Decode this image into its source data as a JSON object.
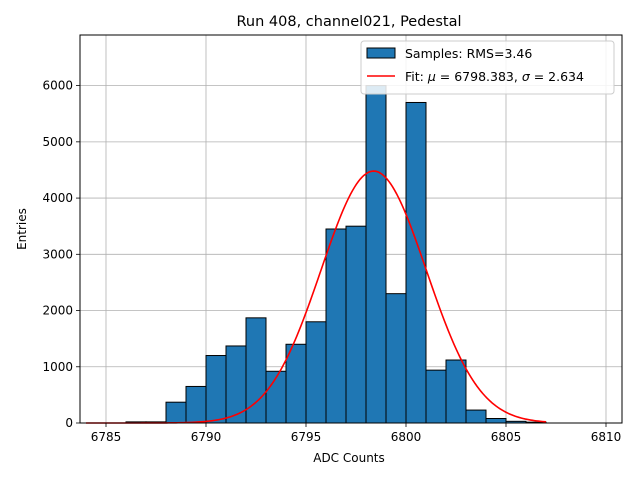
{
  "chart_data": {
    "type": "bar",
    "title": "Run 408, channel021, Pedestal",
    "xlabel": "ADC Counts",
    "ylabel": "Entries",
    "xlim": [
      6783.7,
      6810.8
    ],
    "ylim": [
      0,
      6900
    ],
    "xticks": [
      6785,
      6790,
      6795,
      6800,
      6805,
      6810
    ],
    "yticks": [
      0,
      1000,
      2000,
      3000,
      4000,
      5000,
      6000
    ],
    "grid": true,
    "legend_position": "top-right",
    "colors": {
      "bars": "#1f77b4",
      "edge": "#000000",
      "fit": "#ff0000",
      "grid": "#b0b0b0"
    },
    "series": [
      {
        "name": "Samples: RMS=3.46",
        "type": "bar",
        "bin_width": 1,
        "bin_left": [
          6784,
          6785,
          6786,
          6787,
          6788,
          6789,
          6790,
          6791,
          6792,
          6793,
          6794,
          6795,
          6796,
          6797,
          6798,
          6799,
          6800,
          6801,
          6802,
          6803,
          6804,
          6805,
          6806
        ],
        "values": [
          0,
          0,
          20,
          20,
          370,
          650,
          1200,
          1370,
          1870,
          920,
          1400,
          1800,
          3450,
          3500,
          6000,
          2300,
          5700,
          940,
          1120,
          230,
          80,
          30,
          15
        ]
      },
      {
        "name": "Fit: μ = 6798.383, σ = 2.634",
        "legend_parts": [
          "Fit: ",
          "μ",
          " = 6798.383, ",
          "σ",
          " = 2.634"
        ],
        "type": "line",
        "mu": 6798.383,
        "sigma": 2.634,
        "amplitude": 4480,
        "x_range": [
          6784,
          6807
        ]
      }
    ]
  }
}
